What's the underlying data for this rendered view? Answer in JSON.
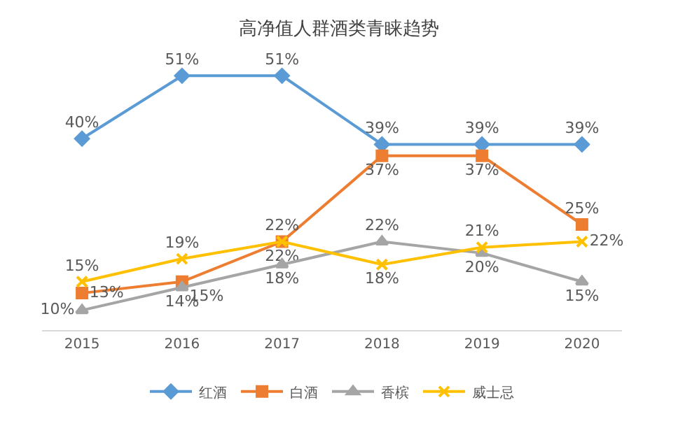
{
  "chart_data": {
    "type": "line",
    "title": "高净值人群酒类青睐趋势",
    "categories": [
      "2015",
      "2016",
      "2017",
      "2018",
      "2019",
      "2020"
    ],
    "series": [
      {
        "name": "红酒",
        "color": "#5b9bd5",
        "marker": "diamond",
        "values": [
          40,
          51,
          51,
          39,
          39,
          39
        ],
        "value_labels": [
          "40%",
          "51%",
          "51%",
          "39%",
          "39%",
          "39%"
        ]
      },
      {
        "name": "白酒",
        "color": "#ed7d31",
        "marker": "square",
        "values": [
          13,
          15,
          22,
          37,
          37,
          25
        ],
        "value_labels": [
          "13%",
          "15%",
          "22%",
          "37%",
          "37%",
          "25%"
        ]
      },
      {
        "name": "香槟",
        "color": "#a5a5a5",
        "marker": "triangle",
        "values": [
          10,
          14,
          18,
          22,
          20,
          15
        ],
        "value_labels": [
          "10%",
          "14%",
          "18%",
          "22%",
          "20%",
          "15%"
        ]
      },
      {
        "name": "威士忌",
        "color": "#ffc000",
        "marker": "cross",
        "values": [
          15,
          19,
          22,
          18,
          21,
          22
        ],
        "value_labels": [
          "15%",
          "19%",
          "22%",
          "18%",
          "21%",
          "22%"
        ]
      }
    ],
    "legend": "bottom",
    "line_style": "solid"
  }
}
